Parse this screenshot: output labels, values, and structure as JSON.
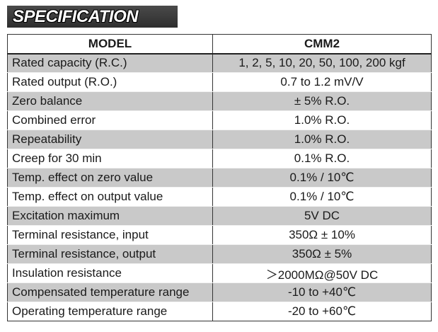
{
  "banner": {
    "title": "SPECIFICATION"
  },
  "table": {
    "header": {
      "parameter": "MODEL",
      "value": "CMM2"
    },
    "rows": [
      {
        "parameter": "Rated capacity (R.C.)",
        "value": "1, 2, 5, 10, 20, 50, 100, 200 kgf"
      },
      {
        "parameter": "Rated output (R.O.)",
        "value": "0.7 to 1.2 mV/V"
      },
      {
        "parameter": "Zero balance",
        "value": "± 5% R.O."
      },
      {
        "parameter": "Combined error",
        "value": "1.0% R.O."
      },
      {
        "parameter": "Repeatability",
        "value": "1.0% R.O."
      },
      {
        "parameter": "Creep for 30 min",
        "value": "0.1% R.O."
      },
      {
        "parameter": "Temp. effect on zero value",
        "value": "0.1% / 10℃"
      },
      {
        "parameter": "Temp. effect on output value",
        "value": "0.1% / 10℃"
      },
      {
        "parameter": "Excitation maximum",
        "value": "5V DC"
      },
      {
        "parameter": "Terminal resistance, input",
        "value": "350Ω ± 10%"
      },
      {
        "parameter": "Terminal resistance, output",
        "value": "350Ω ± 5%"
      },
      {
        "parameter": "Insulation resistance",
        "value": "＞2000MΩ@50V DC"
      },
      {
        "parameter": "Compensated temperature range",
        "value": "-10 to +40℃"
      },
      {
        "parameter": "Operating temperature range",
        "value": "-20 to +60℃"
      }
    ]
  },
  "colors": {
    "banner_background": "#3a3a3a",
    "banner_text": "#ffffff",
    "row_shade": "#c9c9c9",
    "row_plain": "#ffffff",
    "border": "#333333"
  }
}
